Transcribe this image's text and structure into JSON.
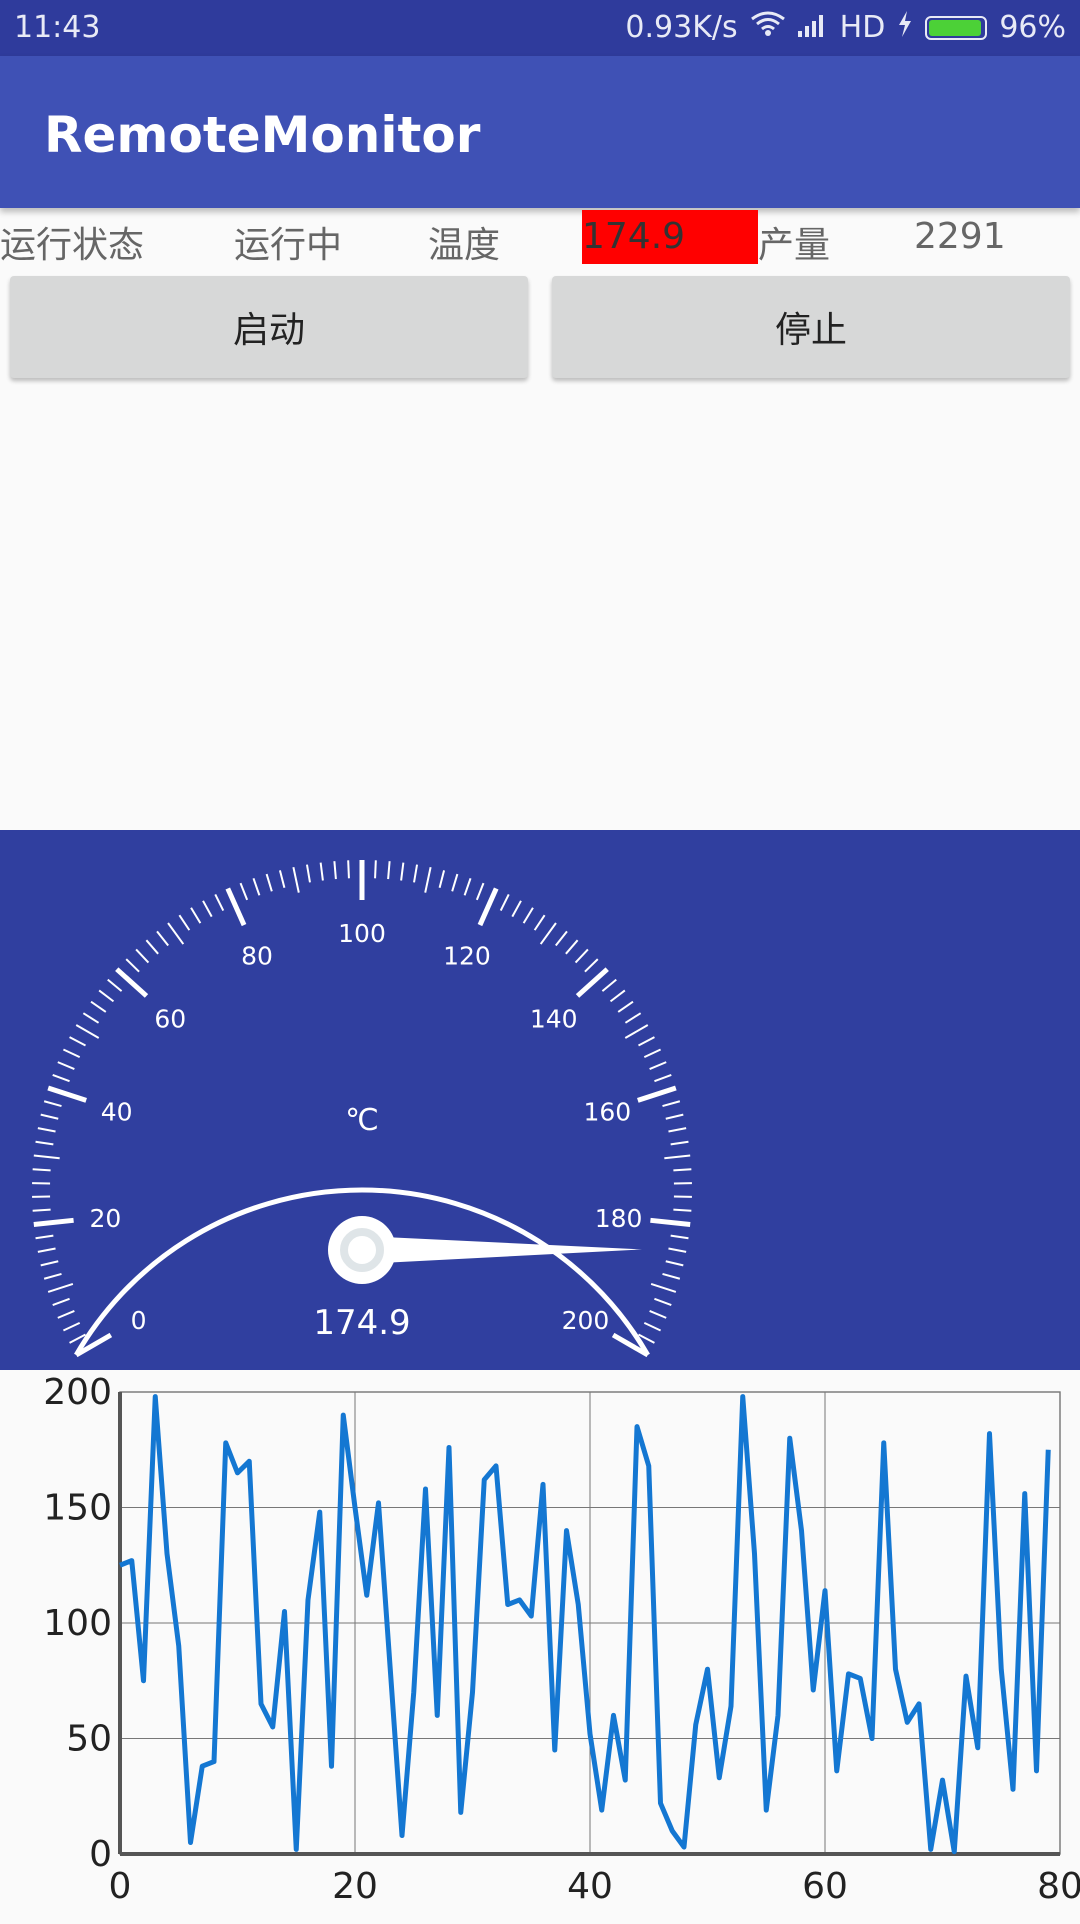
{
  "status_bar": {
    "time": "11:43",
    "net_speed": "0.93K/s",
    "network": "HD",
    "battery": "96%"
  },
  "app": {
    "title": "RemoteMonitor"
  },
  "info": {
    "run_state_label": "运行状态",
    "run_state_value": "运行中",
    "temp_label": "温度",
    "temp_value": "174.9",
    "output_label": "产量",
    "output_value": "2291"
  },
  "buttons": {
    "start": "启动",
    "stop": "停止"
  },
  "gauge": {
    "min": 0,
    "max": 200,
    "value": 174.9,
    "unit": "℃",
    "value_label": "174.9",
    "ticks": [
      "0",
      "20",
      "40",
      "60",
      "80",
      "100",
      "120",
      "140",
      "160",
      "180",
      "200"
    ]
  },
  "colors": {
    "primary": "#3f51b5",
    "primary_dark": "#303f9f",
    "alert": "#ff0000",
    "line": "#1477d2"
  },
  "chart_data": {
    "type": "line",
    "xlim": [
      0,
      80
    ],
    "ylim": [
      0,
      200
    ],
    "x_ticks": [
      "0",
      "20",
      "40",
      "60",
      "80"
    ],
    "y_ticks": [
      "0",
      "50",
      "100",
      "150",
      "200"
    ],
    "grid": true,
    "series": [
      {
        "values": [
          125,
          127,
          75,
          198,
          130,
          90,
          5,
          38,
          40,
          178,
          165,
          170,
          65,
          55,
          105,
          2,
          110,
          148,
          38,
          190,
          150,
          112,
          152,
          80,
          8,
          70,
          158,
          60,
          176,
          18,
          70,
          162,
          168,
          108,
          110,
          103,
          160,
          45,
          140,
          108,
          52,
          19,
          60,
          32,
          185,
          168,
          22,
          10,
          3,
          56,
          80,
          33,
          64,
          198,
          130,
          19,
          60,
          180,
          140,
          71,
          114,
          36,
          78,
          76,
          50,
          178,
          80,
          57,
          65,
          2,
          32,
          1,
          77,
          46,
          182,
          80,
          28,
          156,
          36,
          175
        ]
      }
    ]
  }
}
